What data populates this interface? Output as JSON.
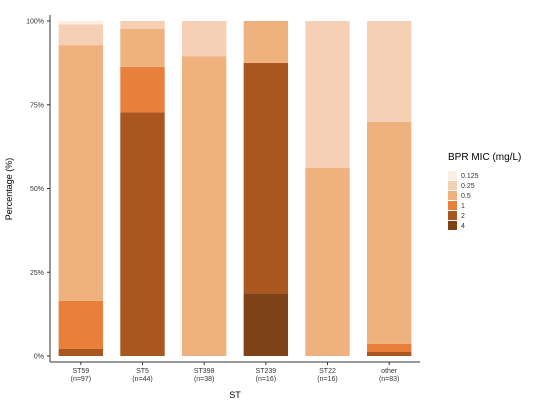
{
  "chart_data": {
    "type": "bar",
    "stacked": true,
    "orientation": "vertical",
    "xlabel": "ST",
    "ylabel": "Percentage (%)",
    "ylim": [
      0,
      100
    ],
    "y_ticks": [
      "0%",
      "25%",
      "50%",
      "75%",
      "100%"
    ],
    "grid": false,
    "legend_title": "BPR MIC (mg/L)",
    "legend_position": "right",
    "categories": [
      {
        "name": "ST59",
        "n": "(n=97)"
      },
      {
        "name": "ST5",
        "n": "(n=44)"
      },
      {
        "name": "ST398",
        "n": "(n=38)"
      },
      {
        "name": "ST239",
        "n": "(n=16)"
      },
      {
        "name": "ST22",
        "n": "(n=16)"
      },
      {
        "name": "other",
        "n": "(n=83)"
      }
    ],
    "series": [
      {
        "name": "0.125",
        "color": "#FCEEE4",
        "values": [
          1.0,
          0,
          0,
          0,
          0,
          0
        ]
      },
      {
        "name": "0.25",
        "color": "#F6D0B5",
        "values": [
          6.2,
          2.3,
          10.5,
          0,
          43.8,
          30.1
        ]
      },
      {
        "name": "0.5",
        "color": "#EFB27E",
        "values": [
          76.3,
          11.4,
          89.5,
          12.5,
          56.2,
          66.3
        ]
      },
      {
        "name": "1",
        "color": "#E8803B",
        "values": [
          14.4,
          13.6,
          0,
          0,
          0,
          2.4
        ]
      },
      {
        "name": "2",
        "color": "#A9561F",
        "values": [
          2.1,
          72.7,
          0,
          68.8,
          0,
          1.2
        ]
      },
      {
        "name": "4",
        "color": "#7F4216",
        "values": [
          0,
          0,
          0,
          18.7,
          0,
          0
        ]
      }
    ]
  }
}
